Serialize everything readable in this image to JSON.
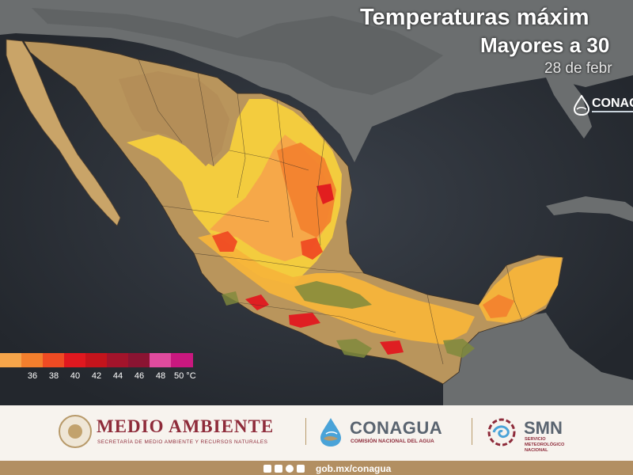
{
  "title": {
    "line1": "Temperaturas máxim",
    "line2": "Mayores a 30",
    "date": "28 de febr"
  },
  "map_logo": {
    "text": "CONAG"
  },
  "legend": {
    "items": [
      {
        "label": "",
        "color": "#f6a54a"
      },
      {
        "label": "36",
        "color": "#f37f2d"
      },
      {
        "label": "38",
        "color": "#ef4b23"
      },
      {
        "label": "40",
        "color": "#e0181f"
      },
      {
        "label": "42",
        "color": "#c4141c"
      },
      {
        "label": "44",
        "color": "#a3142b"
      },
      {
        "label": "46",
        "color": "#8a1432"
      },
      {
        "label": "48",
        "color": "#e04b9e"
      },
      {
        "label": "50 °C",
        "color": "#c9187f"
      }
    ]
  },
  "footer": {
    "medio_ambiente": {
      "title": "MEDIO AMBIENTE",
      "subtitle": "SECRETARÍA DE MEDIO AMBIENTE Y RECURSOS NATURALES"
    },
    "conagua": {
      "title": "CONAGUA",
      "subtitle": "COMISIÓN NACIONAL DEL AGUA"
    },
    "smn": {
      "title": "SMN",
      "subtitle": "SERVICIO METEOROLÓGICO NACIONAL"
    },
    "url": "gob.mx/conagua",
    "social_icons": [
      "facebook-icon",
      "twitter-icon",
      "instagram-icon",
      "youtube-icon"
    ]
  },
  "colors": {
    "land_base": "#b9955c",
    "temp_30": "#f7d03c",
    "temp_32": "#f5b43a",
    "temp_34": "#f6a54a",
    "temp_hot": "#e0181f",
    "ocean": "#2b2f36",
    "footer_bg": "#f7f3ee",
    "footer_bar": "#b28f62",
    "brand_red": "#8e2b3a"
  }
}
